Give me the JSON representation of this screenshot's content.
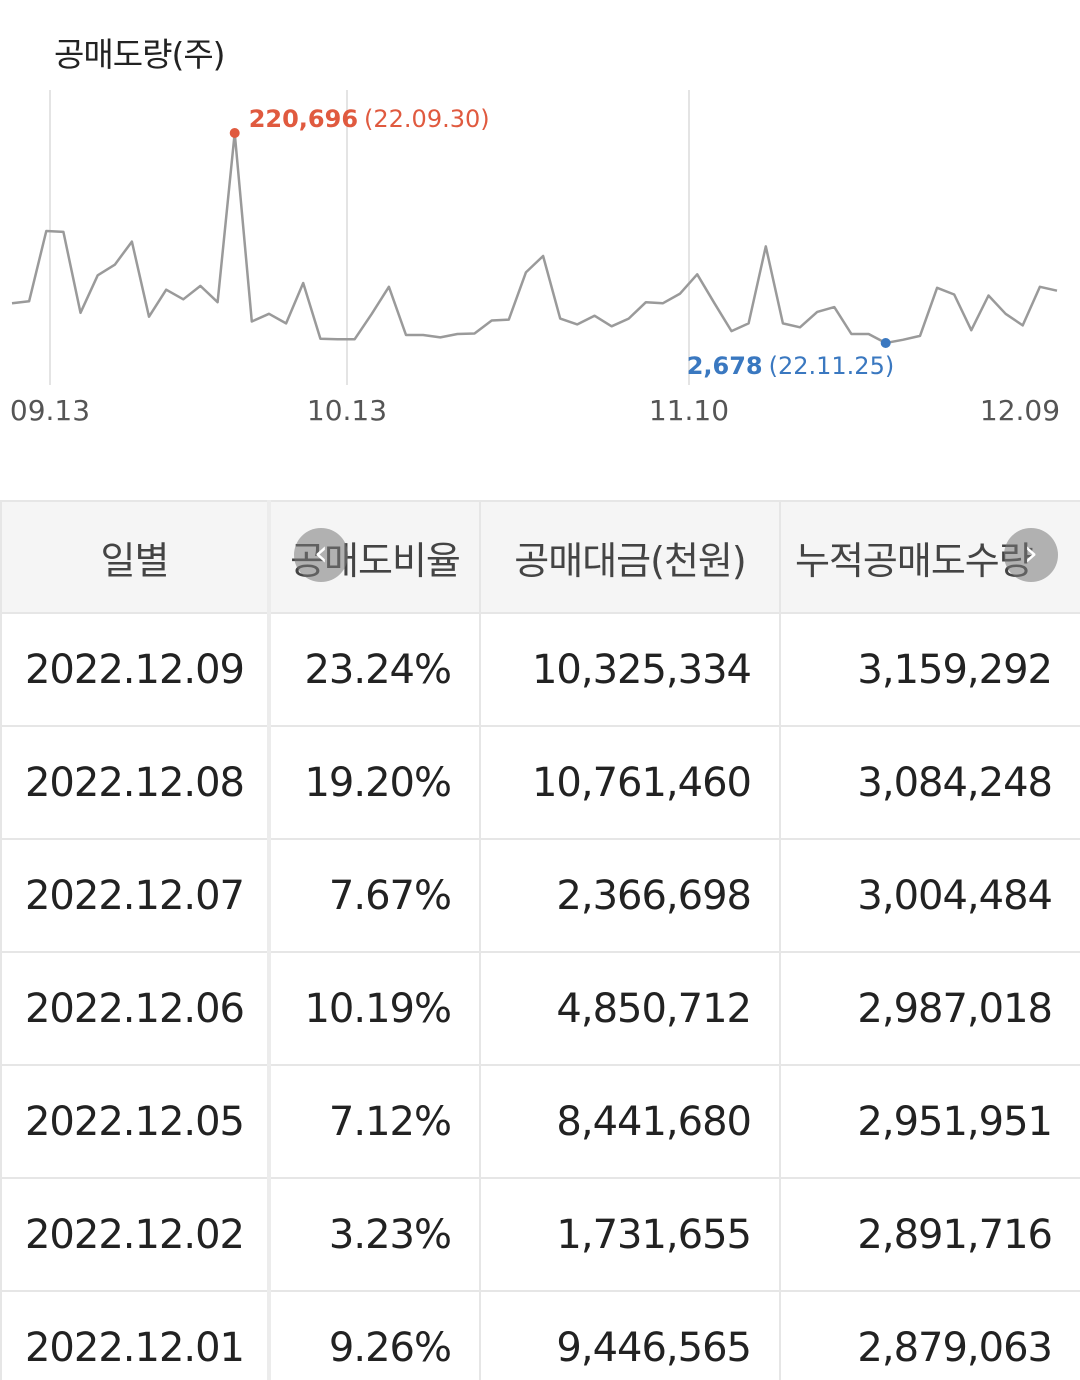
{
  "chart_data": {
    "type": "line",
    "title": "공매도량(주)",
    "x_tick_labels": [
      "09.13",
      "10.13",
      "11.10",
      "12.09"
    ],
    "max_annotation": {
      "value": "220,696",
      "date": "(22.09.30)",
      "color": "#e05a3f"
    },
    "min_annotation": {
      "value": "2,678",
      "date": "(22.11.25)",
      "color": "#3a78c0"
    },
    "ylim": [
      0,
      240000
    ],
    "series": [
      {
        "values": [
          44000,
          46000,
          119000,
          118000,
          34000,
          73000,
          84000,
          108000,
          30000,
          58000,
          48000,
          62000,
          45000,
          220696,
          25000,
          33000,
          23000,
          65000,
          7000,
          6500,
          6500,
          33000,
          61000,
          11000,
          11000,
          8500,
          12000,
          12500,
          26000,
          27000,
          76000,
          93000,
          28000,
          22000,
          31000,
          20000,
          28000,
          45000,
          44000,
          54000,
          74000,
          44000,
          15000,
          23000,
          103000,
          23000,
          19000,
          35000,
          40000,
          12000,
          12000,
          2678,
          6000,
          10000,
          60000,
          53000,
          16000,
          52000,
          33000,
          21000,
          61000,
          57000
        ]
      }
    ]
  },
  "table": {
    "headers": [
      "일별",
      "공매도비율",
      "공매대금(천원)",
      "누적공매도수량"
    ],
    "rows": [
      [
        "2022.12.09",
        "23.24%",
        "10,325,334",
        "3,159,292"
      ],
      [
        "2022.12.08",
        "19.20%",
        "10,761,460",
        "3,084,248"
      ],
      [
        "2022.12.07",
        "7.67%",
        "2,366,698",
        "3,004,484"
      ],
      [
        "2022.12.06",
        "10.19%",
        "4,850,712",
        "2,987,018"
      ],
      [
        "2022.12.05",
        "7.12%",
        "8,441,680",
        "2,951,951"
      ],
      [
        "2022.12.02",
        "3.23%",
        "1,731,655",
        "2,891,716"
      ],
      [
        "2022.12.01",
        "9.26%",
        "9,446,565",
        "2,879,063"
      ]
    ]
  },
  "nav": {
    "prev_icon": "chevron-left-icon",
    "next_icon": "chevron-right-icon"
  }
}
